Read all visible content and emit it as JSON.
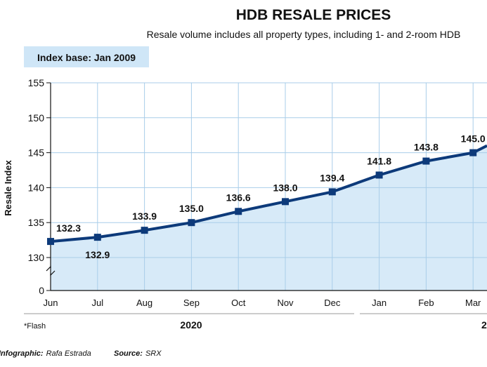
{
  "chart_data": {
    "type": "line",
    "title": "HDB RESALE PRICES",
    "subtitle": "Resale volume includes all property types, including 1- and 2-room HDB",
    "index_base": "Index base: Jan 2009",
    "ylabel": "Resale Index",
    "ylim": [
      130,
      155
    ],
    "yticks": [
      "155",
      "150",
      "145",
      "140",
      "135",
      "130",
      "0"
    ],
    "y_axis_break": true,
    "categories": [
      "Jun",
      "Jul",
      "Aug",
      "Sep",
      "Oct",
      "Nov",
      "Dec",
      "Jan",
      "Feb",
      "Mar"
    ],
    "values": [
      132.3,
      132.9,
      133.9,
      135.0,
      136.6,
      138.0,
      139.4,
      141.8,
      143.8,
      145.0
    ],
    "data_labels": [
      "132.3",
      "132.9",
      "133.9",
      "135.0",
      "136.6",
      "138.0",
      "139.4",
      "141.8",
      "143.8",
      "145.0"
    ],
    "trailing_value": 146.0,
    "year_groups": [
      {
        "label": "2020",
        "categories": [
          "Jun",
          "Jul",
          "Aug",
          "Sep",
          "Oct",
          "Nov",
          "Dec"
        ]
      },
      {
        "label": "2",
        "categories": [
          "Jan",
          "Feb",
          "Mar"
        ]
      }
    ],
    "grid": true,
    "colors": {
      "line": "#0d3a7a",
      "fill": "#d7eaf8",
      "grid": "#a9cde9",
      "box": "#cfe6f7"
    }
  },
  "footer": {
    "flash_note": "*Flash",
    "infographic_label": "Infographic:",
    "infographic_value": "Rafa Estrada",
    "source_label": "Source:",
    "source_value": "SRX"
  }
}
